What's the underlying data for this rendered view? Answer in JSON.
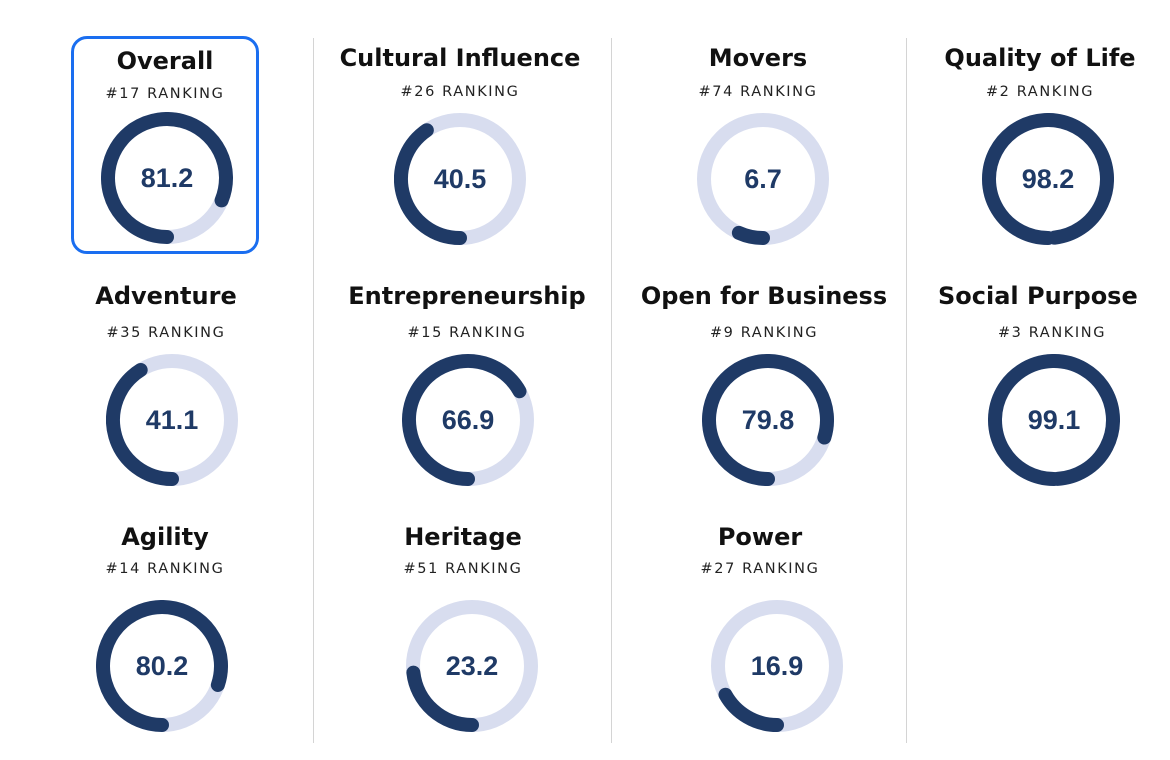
{
  "colors": {
    "gauge_fill": "#1f3a66",
    "gauge_track": "#d8ddef",
    "selected_outline": "#1a6ef0"
  },
  "metrics": [
    {
      "title": "Overall",
      "rank": "#17 RANKING",
      "score": "81.2",
      "level": 0.812,
      "selected": true
    },
    {
      "title": "Cultural Influence",
      "rank": "#26 RANKING",
      "score": "40.5",
      "level": 0.405
    },
    {
      "title": "Movers",
      "rank": "#74 RANKING",
      "score": "6.7",
      "level": 0.067
    },
    {
      "title": "Quality of Life",
      "rank": "#2 RANKING",
      "score": "98.2",
      "level": 0.982
    },
    {
      "title": "Adventure",
      "rank": "#35 RANKING",
      "score": "41.1",
      "level": 0.411
    },
    {
      "title": "Entrepreneurship",
      "rank": "#15 RANKING",
      "score": "66.9",
      "level": 0.669
    },
    {
      "title": "Open for Business",
      "rank": "#9 RANKING",
      "score": "79.8",
      "level": 0.798
    },
    {
      "title": "Social Purpose",
      "rank": "#3 RANKING",
      "score": "99.1",
      "level": 0.991
    },
    {
      "title": "Agility",
      "rank": "#14 RANKING",
      "score": "80.2",
      "level": 0.802
    },
    {
      "title": "Heritage",
      "rank": "#51 RANKING",
      "score": "23.2",
      "level": 0.232
    },
    {
      "title": "Power",
      "rank": "#27 RANKING",
      "score": "16.9",
      "level": 0.169
    }
  ]
}
